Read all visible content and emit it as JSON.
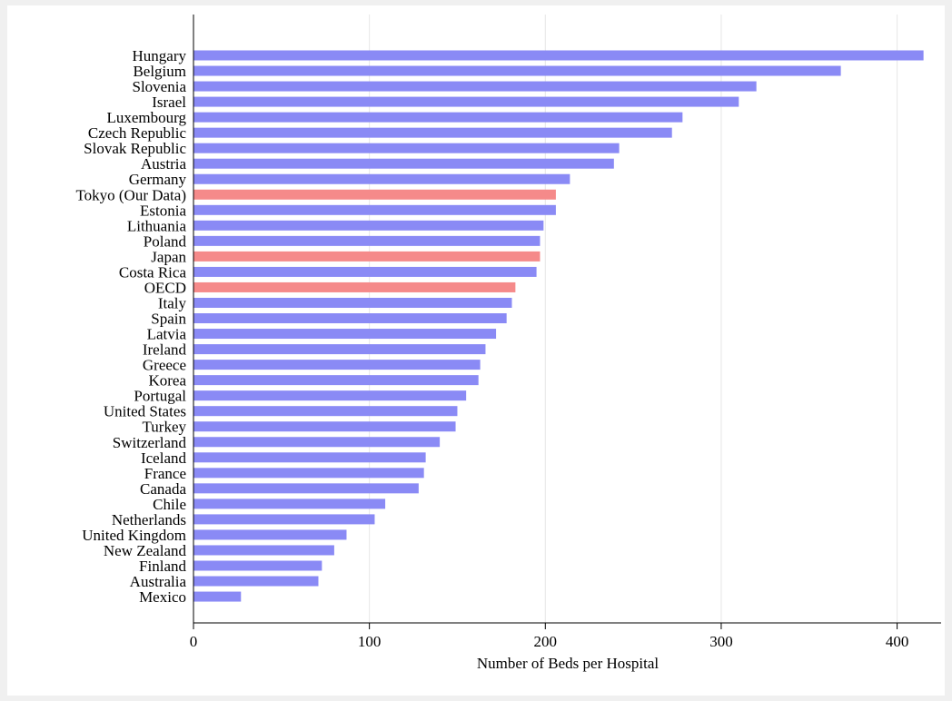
{
  "chart_data": {
    "type": "bar",
    "orientation": "horizontal",
    "xlabel": "Number of Beds per Hospital",
    "ylabel": "",
    "xlim": [
      0,
      425
    ],
    "xticks": [
      0,
      100,
      200,
      300,
      400
    ],
    "grid": true,
    "colors": {
      "default": "#8a8af5",
      "highlight": "#f58a8a"
    },
    "categories": [
      "Hungary",
      "Belgium",
      "Slovenia",
      "Israel",
      "Luxembourg",
      "Czech Republic",
      "Slovak Republic",
      "Austria",
      "Germany",
      "Tokyo (Our Data)",
      "Estonia",
      "Lithuania",
      "Poland",
      "Japan",
      "Costa Rica",
      "OECD",
      "Italy",
      "Spain",
      "Latvia",
      "Ireland",
      "Greece",
      "Korea",
      "Portugal",
      "United States",
      "Turkey",
      "Switzerland",
      "Iceland",
      "France",
      "Canada",
      "Chile",
      "Netherlands",
      "United Kingdom",
      "New Zealand",
      "Finland",
      "Australia",
      "Mexico"
    ],
    "values": [
      415,
      368,
      320,
      310,
      278,
      272,
      242,
      239,
      214,
      206,
      206,
      199,
      197,
      197,
      195,
      183,
      181,
      178,
      172,
      166,
      163,
      162,
      155,
      150,
      149,
      140,
      132,
      131,
      128,
      109,
      103,
      87,
      80,
      73,
      71,
      27
    ],
    "highlighted": [
      "Tokyo (Our Data)",
      "Japan",
      "OECD"
    ]
  }
}
